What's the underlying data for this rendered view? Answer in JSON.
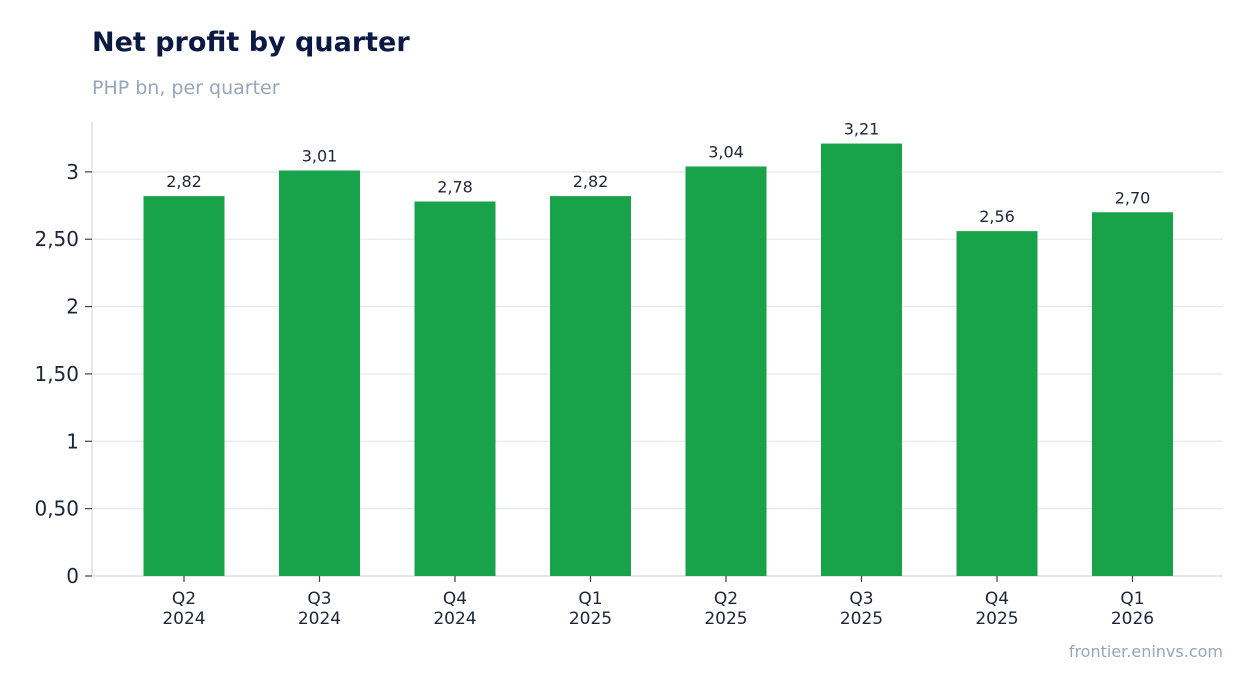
{
  "header": {
    "title": "Net profit by quarter",
    "subtitle": "PHP bn, per quarter"
  },
  "footer": {
    "source": "frontier.eninvs.com"
  },
  "chart_data": {
    "type": "bar",
    "categories": [
      [
        "Q2",
        "2024"
      ],
      [
        "Q3",
        "2024"
      ],
      [
        "Q4",
        "2024"
      ],
      [
        "Q1",
        "2025"
      ],
      [
        "Q2",
        "2025"
      ],
      [
        "Q3",
        "2025"
      ],
      [
        "Q4",
        "2025"
      ],
      [
        "Q1",
        "2026"
      ]
    ],
    "values": [
      2.82,
      3.01,
      2.78,
      2.82,
      3.04,
      3.21,
      2.56,
      2.7
    ],
    "value_labels": [
      "2,82",
      "3,01",
      "2,78",
      "2,82",
      "3,04",
      "3,21",
      "2,56",
      "2,70"
    ],
    "yticks": [
      0,
      0.5,
      1,
      1.5,
      2,
      2.5,
      3
    ],
    "ytick_labels": [
      "0",
      "0,50",
      "1",
      "1,50",
      "2",
      "2,50",
      "3"
    ],
    "ylim": [
      0,
      3.37
    ],
    "grid": true,
    "legend": "none",
    "bar_color": "#18a34a",
    "grid_color": "#e4e7ec",
    "axis_color": "#d3d7de",
    "label_color": "#1e2538"
  }
}
